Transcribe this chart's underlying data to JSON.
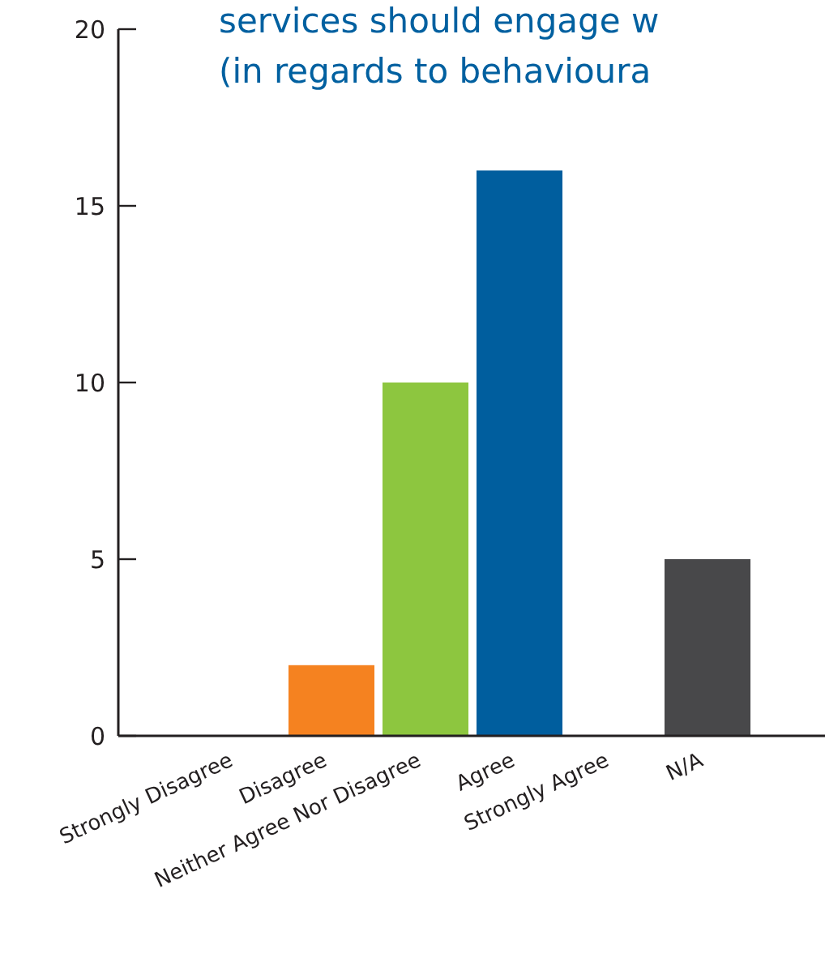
{
  "chart_data": {
    "type": "bar",
    "title": "services should engage w\n(in regards to behavioura",
    "categories": [
      "Strongly Disagree",
      "Disagree",
      "Neither Agree Nor Disagree",
      "Agree",
      "Strongly Agree",
      "N/A"
    ],
    "values": [
      0,
      2,
      10,
      16,
      0,
      5
    ],
    "colors": [
      "#e03c31",
      "#f58220",
      "#8dc63f",
      "#005e9e",
      "#6b3fa0",
      "#48484a"
    ],
    "ylim": [
      0,
      20
    ],
    "yticks": [
      0,
      5,
      10,
      15,
      20
    ]
  }
}
